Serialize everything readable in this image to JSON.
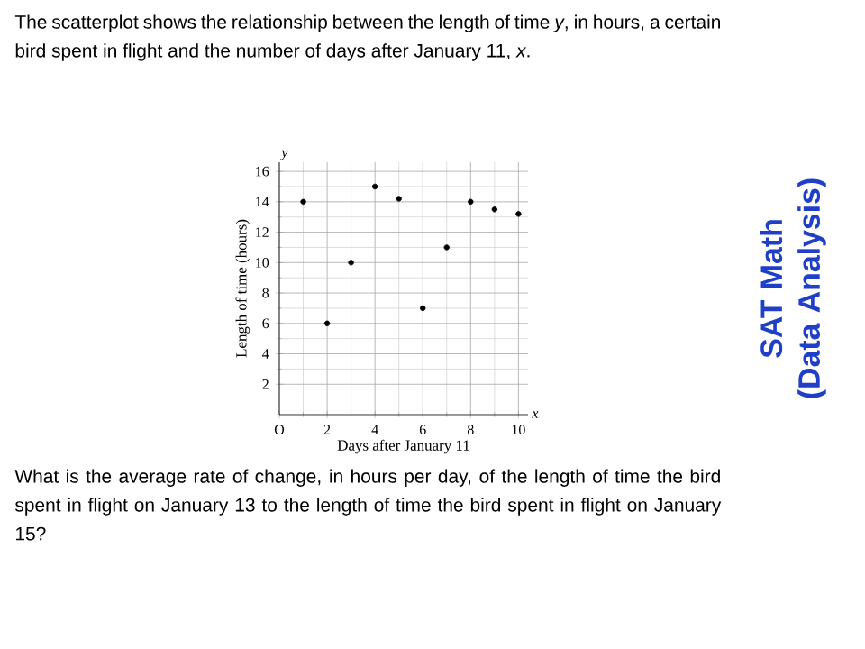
{
  "chart_data": {
    "type": "scatter",
    "title": "The scatterplot shows the relationship between the length of time *y*, in hours, a certain bird spent in flight and the number of days after January 11, *x*.",
    "xlabel": "Days after January 11",
    "ylabel": "Length of time (hours)",
    "x": [
      1,
      2,
      3,
      4,
      5,
      6,
      7,
      8,
      9,
      10
    ],
    "values": [
      14,
      6,
      10,
      15,
      14.2,
      7,
      11,
      14,
      13.5,
      13.2
    ],
    "color": "#000000",
    "marker": "circle",
    "grid": true,
    "xlim": [
      0,
      10.4
    ],
    "ylim": [
      0,
      16.6
    ],
    "xticks": [
      {
        "value": 0,
        "label": "O"
      },
      2,
      4,
      6,
      8,
      10
    ],
    "yticks": [
      2,
      4,
      6,
      8,
      10,
      12,
      14,
      16
    ],
    "annotations": [
      "What is the average rate of change, in hours per day, of the length of time the bird spent in flight on January 13 to the length of time the bird spent in flight on January 15?",
      "SAT Math (Data Analysis)",
      "y",
      "x"
    ]
  }
}
